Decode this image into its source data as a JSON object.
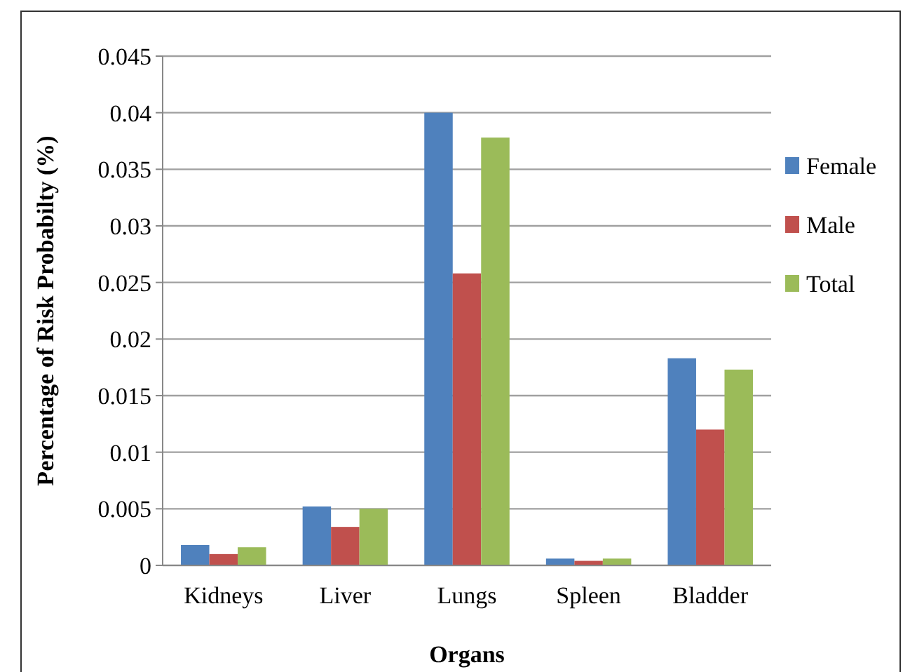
{
  "chart_data": {
    "type": "bar",
    "xlabel": "Organs",
    "ylabel": "Percentage of Risk Probabilty (%)",
    "categories": [
      "Kidneys",
      "Liver",
      "Lungs",
      "Spleen",
      "Bladder"
    ],
    "series": [
      {
        "name": "Female",
        "color": "#4f81bd",
        "values": [
          0.0018,
          0.0052,
          0.04,
          0.0006,
          0.0183
        ]
      },
      {
        "name": "Male",
        "color": "#c0504d",
        "values": [
          0.001,
          0.0034,
          0.0258,
          0.0004,
          0.012
        ]
      },
      {
        "name": "Total",
        "color": "#9bbb59",
        "values": [
          0.0016,
          0.005,
          0.0378,
          0.0006,
          0.0173
        ]
      }
    ],
    "ylim": [
      0,
      0.045
    ],
    "yticks": [
      0,
      0.005,
      0.01,
      0.015,
      0.02,
      0.025,
      0.03,
      0.035,
      0.04,
      0.045
    ],
    "grid": "y",
    "legend": "right"
  }
}
